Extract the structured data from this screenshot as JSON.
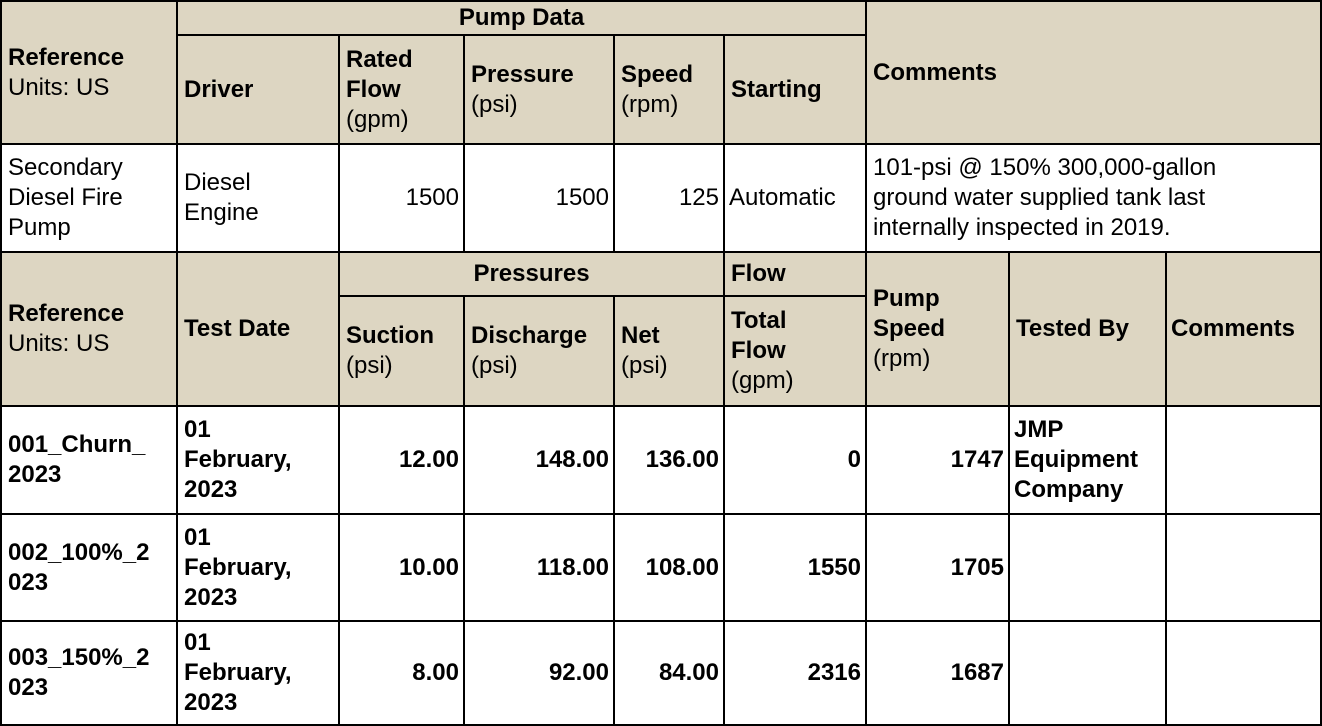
{
  "pump_data": {
    "group_header": "Pump Data",
    "reference": "Reference",
    "units": "Units: US",
    "driver": "Driver",
    "rated_flow": "Rated\nFlow",
    "rated_flow_unit": "(gpm)",
    "pressure": "Pressure",
    "pressure_unit": "(psi)",
    "speed": "Speed",
    "speed_unit": "(rpm)",
    "starting": "Starting",
    "comments": "Comments",
    "row": {
      "reference": "Secondary\nDiesel Fire\nPump",
      "driver": "Diesel\nEngine",
      "rated_flow": "1500",
      "pressure": "1500",
      "speed": "125",
      "starting": "Automatic",
      "comments": "101-psi @ 150% 300,000-gallon\nground water supplied tank last\ninternally inspected in 2019."
    }
  },
  "test_data": {
    "reference": "Reference",
    "units": "Units: US",
    "test_date": "Test Date",
    "pressures_group": "Pressures",
    "flow_group": "Flow",
    "suction": "Suction",
    "suction_unit": "(psi)",
    "discharge": "Discharge",
    "discharge_unit": "(psi)",
    "net": "Net",
    "net_unit": "(psi)",
    "total_flow": "Total\nFlow",
    "total_flow_unit": "(gpm)",
    "pump_speed": "Pump\nSpeed",
    "pump_speed_unit": "(rpm)",
    "tested_by": "Tested By",
    "comments": "Comments",
    "rows": [
      {
        "reference": "001_Churn_\n2023",
        "date": "01\nFebruary,\n2023",
        "suction": "12.00",
        "discharge": "148.00",
        "net": "136.00",
        "flow": "0",
        "speed": "1747",
        "tested_by": "JMP\nEquipment\nCompany",
        "comments": ""
      },
      {
        "reference": "002_100%_2\n023",
        "date": "01\nFebruary,\n2023",
        "suction": "10.00",
        "discharge": "118.00",
        "net": "108.00",
        "flow": "1550",
        "speed": "1705",
        "tested_by": "",
        "comments": ""
      },
      {
        "reference": "003_150%_2\n023",
        "date": "01\nFebruary,\n2023",
        "suction": "8.00",
        "discharge": "92.00",
        "net": "84.00",
        "flow": "2316",
        "speed": "1687",
        "tested_by": "",
        "comments": ""
      }
    ]
  }
}
